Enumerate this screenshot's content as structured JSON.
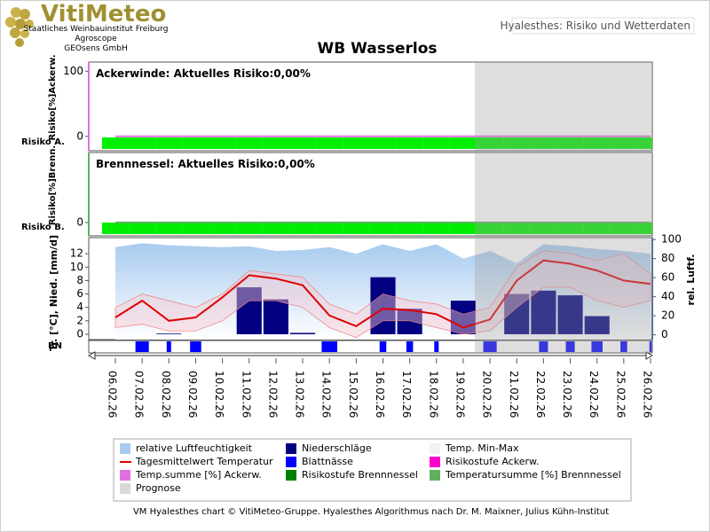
{
  "header": {
    "logo": "VitiMeteo",
    "lines": [
      "Staatliches Weinbauinstitut Freiburg",
      "Agroscope",
      "GEOsens GmbH"
    ],
    "tab": "Hyalesthes: Risiko und Wetterdaten"
  },
  "title": "WB Wasserlos",
  "prognose": "Prognose",
  "footer": "VM Hyalesthes chart © VitiMeteo-Gruppe. Hyalesthes Algorithmus nach Dr. M. Maixner, Julius Kühn-Institut",
  "chart_data": [
    {
      "type": "risk",
      "title": "Ackerwinde: Aktuelles Risiko:0,00%",
      "ylabel": "Risiko[%]Ackerw.",
      "band_label": "Risiko A.",
      "ylim": [
        -22,
        114
      ],
      "yticks": [
        0,
        100
      ],
      "series": [
        {
          "name": "Temp.summe [%] Ackerw.",
          "color": "#e070e0",
          "values": [
            0,
            0,
            0,
            0,
            0,
            0,
            0,
            0,
            0,
            0,
            0,
            0,
            0,
            0,
            0,
            0,
            0,
            0,
            0,
            0,
            0
          ]
        }
      ],
      "risk_stage": {
        "name": "Risikostufe Ackerw.",
        "color": "#00ee00",
        "legend_color": "#ff00cc",
        "values": [
          0,
          0,
          0,
          0,
          0,
          0,
          0,
          0,
          0,
          0,
          0,
          0,
          0,
          0,
          0,
          0,
          0,
          0,
          0,
          0,
          0
        ]
      }
    },
    {
      "type": "risk",
      "title": "Brennnessel: Aktuelles Risiko:0,00%",
      "ylabel": "Risiko[%]Brenn.",
      "band_label": "Risiko B.",
      "ylim": [
        -21,
        110
      ],
      "yticks": [
        0
      ],
      "series": [
        {
          "name": "Temperatursumme [%] Brennnessel",
          "color": "#60b060",
          "values": [
            0,
            0,
            0,
            0,
            0,
            0,
            0,
            0,
            0,
            0,
            0,
            0,
            0,
            0,
            0,
            0,
            0,
            0,
            0,
            0,
            0
          ]
        }
      ],
      "risk_stage": {
        "name": "Risikostufe Brennnessel",
        "color": "#00ee00",
        "legend_color": "#008000",
        "values": [
          0,
          0,
          0,
          0,
          0,
          0,
          0,
          0,
          0,
          0,
          0,
          0,
          0,
          0,
          0,
          0,
          0,
          0,
          0,
          0,
          0
        ]
      }
    },
    {
      "type": "weather",
      "ylabel": "Tr. [°C], Nied. [mm/d]",
      "y2label": "rel. Luftf.",
      "leaf_label": "BN",
      "categories": [
        "06.02.26",
        "07.02.26",
        "08.02.26",
        "09.02.26",
        "10.02.26",
        "11.02.26",
        "12.02.26",
        "13.02.26",
        "14.02.26",
        "15.02.26",
        "16.02.26",
        "17.02.26",
        "18.02.26",
        "19.02.26",
        "20.02.26",
        "21.02.26",
        "22.02.26",
        "23.02.26",
        "24.02.26",
        "25.02.26",
        "26.02.26"
      ],
      "ylim": [
        -0.8,
        14.4
      ],
      "yticks": [
        0,
        2,
        4,
        6,
        8,
        10,
        12
      ],
      "y2lim": [
        -5,
        102
      ],
      "y2ticks": [
        0,
        20,
        40,
        60,
        80,
        100
      ],
      "humidity": {
        "name": "relative Luftfeuchtigkeit",
        "axis": "y2",
        "color": "#a8cbef",
        "values": [
          92,
          96,
          94,
          93,
          92,
          93,
          88,
          89,
          92,
          85,
          95,
          88,
          95,
          80,
          88,
          75,
          95,
          93,
          90,
          88,
          85
        ]
      },
      "precipitation": {
        "name": "Niederschläge",
        "color": "#000080",
        "values": [
          0,
          0,
          0.1,
          0,
          0,
          7,
          5.2,
          0.2,
          0,
          0,
          8.5,
          3.8,
          0,
          5,
          0,
          6,
          6.5,
          5.8,
          2.7,
          0,
          0
        ]
      },
      "minmax": {
        "name": "Temp. Min-Max",
        "color": "#f8c8d0",
        "high": [
          4,
          6,
          5,
          4,
          6,
          9.5,
          9,
          8.5,
          4.5,
          3,
          6,
          5,
          4.5,
          3,
          4,
          10,
          12.5,
          12,
          11,
          12,
          9
        ],
        "low": [
          1,
          1.5,
          0.5,
          0.5,
          2,
          5,
          5,
          4,
          1,
          -0.5,
          2,
          2,
          1,
          0,
          0.5,
          4,
          7,
          7,
          5,
          4,
          5
        ]
      },
      "mean_temp": {
        "name": "Tagesmittelwert Temperatur",
        "color": "#e00000",
        "values": [
          2.5,
          5,
          2,
          2.5,
          5.5,
          8.8,
          8.3,
          7.3,
          2.8,
          1.2,
          3.8,
          3.6,
          3,
          1,
          2.2,
          8,
          11,
          10.5,
          9.5,
          8,
          7.5
        ]
      },
      "leaf_wetness": {
        "name": "Blattnässe",
        "color": "#0000ff",
        "values": [
          0,
          12,
          4,
          10,
          0,
          0,
          0,
          0,
          14,
          0,
          6,
          6,
          4,
          0,
          12,
          0,
          8,
          8,
          10,
          6,
          2
        ]
      }
    }
  ]
}
